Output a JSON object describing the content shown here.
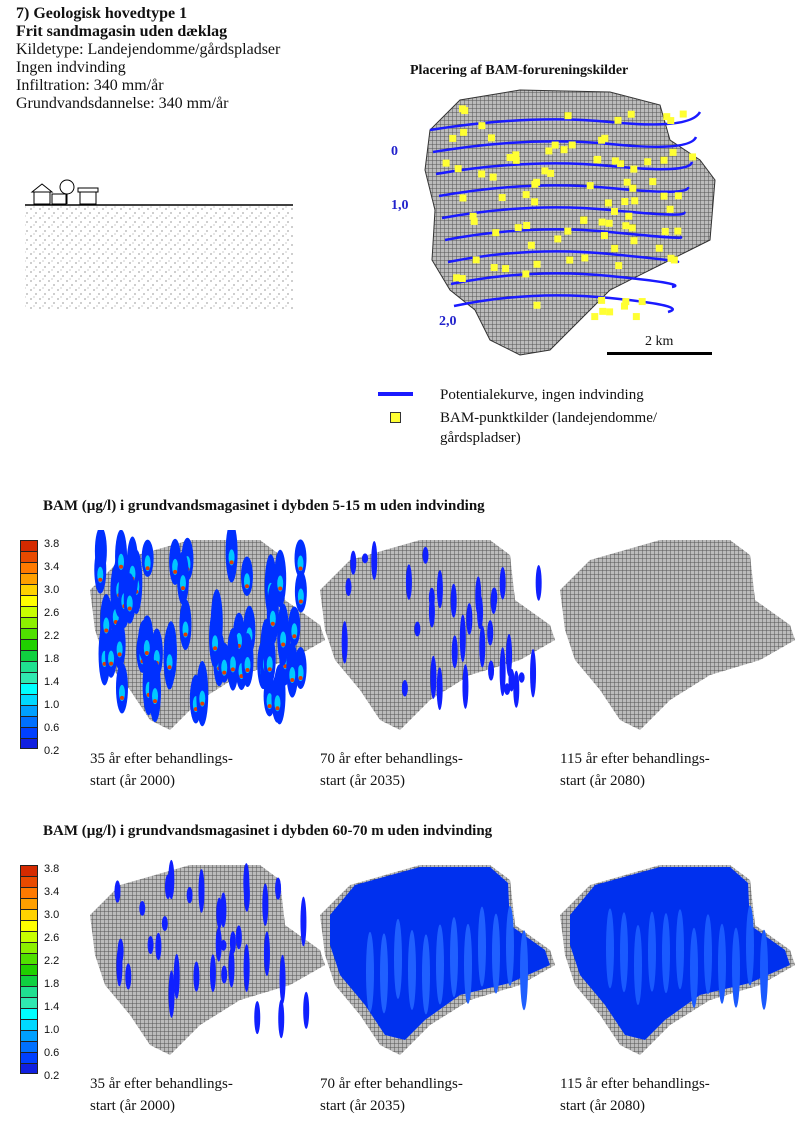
{
  "header": {
    "lines": [
      "7) Geologisk hovedtype 1",
      "Frit sandmagasin uden dæklag",
      "Kildetype: Landejendomme/gårdspladser",
      "Ingen indvinding",
      "Infiltration: 340 mm/år",
      "Grundvandsdannelse: 340 mm/år"
    ]
  },
  "map": {
    "title": "Placering af BAM-forureningskilder",
    "contour_labels": [
      "0",
      "1,0",
      "2,0"
    ],
    "scale": "2 km",
    "legend": {
      "line": "Potentialekurve, ingen indvinding",
      "points_1": "BAM-punktkilder (landejendomme/",
      "points_2": "gårdspladser)"
    },
    "colors": {
      "contour": "#1a1aff",
      "point": "#ffff33"
    }
  },
  "colorbar": {
    "labels": [
      "3.8",
      "3.4",
      "3.0",
      "2.6",
      "2.2",
      "1.8",
      "1.4",
      "1.0",
      "0.6",
      "0.2"
    ]
  },
  "sections": [
    {
      "title": "BAM (µg/l) i grundvandsmagasinet i dybden 5-15 m uden indvinding",
      "captions": [
        [
          "35 år efter behandlings-",
          "start (år 2000)"
        ],
        [
          "70 år efter behandlings-",
          "start (år 2035)"
        ],
        [
          "115 år efter behandlings-",
          "start (år 2080)"
        ]
      ]
    },
    {
      "title": "BAM (µg/l) i grundvandsmagasinet i dybden 60-70 m uden indvinding",
      "captions": [
        [
          "35 år efter behandlings-",
          "start (år 2000)"
        ],
        [
          "70 år efter behandlings-",
          "start (år 2035)"
        ],
        [
          "115 år efter behandlings-",
          "start (år 2080)"
        ]
      ]
    }
  ]
}
